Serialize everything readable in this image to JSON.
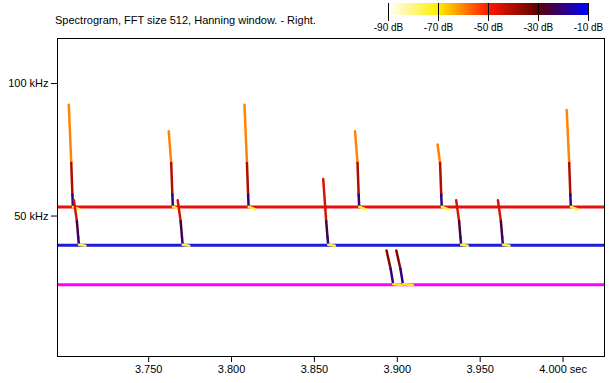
{
  "chart_data": {
    "type": "spectrogram",
    "title": "Spectrogram, FFT size 512, Hanning window. - Right.",
    "xlim": [
      3.695,
      4.025
    ],
    "xticks": [
      {
        "value": 3.75,
        "label": "3.750"
      },
      {
        "value": 3.8,
        "label": "3.800"
      },
      {
        "value": 3.85,
        "label": "3.850"
      },
      {
        "value": 3.9,
        "label": "3.900"
      },
      {
        "value": 3.95,
        "label": "3.950"
      },
      {
        "value": 4,
        "label": "4.000 sec"
      }
    ],
    "ylim": [
      -3,
      117
    ],
    "yticks": [
      {
        "value": 50,
        "label": "50 kHz"
      },
      {
        "value": 100,
        "label": "100 kHz"
      }
    ],
    "grid": false,
    "colorbar": {
      "range": [
        -90,
        -10
      ],
      "ticks": [
        {
          "value": -90,
          "label": "-90 dB"
        },
        {
          "value": -70,
          "label": "-70 dB"
        },
        {
          "value": -50,
          "label": "-50 dB"
        },
        {
          "value": -30,
          "label": "-30 dB"
        },
        {
          "value": -10,
          "label": "-10 dB"
        }
      ]
    },
    "calls": [
      {
        "time": [
          3.7018,
          3.7033,
          3.704,
          3.7043,
          3.7083
        ],
        "freq": [
          92,
          70,
          58,
          53.5,
          52.5
        ],
        "db": [
          -70,
          -60,
          -40,
          -20,
          -75
        ]
      },
      {
        "time": [
          3.7621,
          3.7636,
          3.7643,
          3.7646,
          3.7686
        ],
        "freq": [
          82,
          70,
          58,
          53.5,
          52.5
        ],
        "db": [
          -70,
          -60,
          -40,
          -20,
          -75
        ]
      },
      {
        "time": [
          3.8078,
          3.8093,
          3.81,
          3.8103,
          3.8143
        ],
        "freq": [
          92,
          70,
          58,
          53.5,
          52.5
        ],
        "db": [
          -70,
          -60,
          -40,
          -20,
          -75
        ]
      },
      {
        "time": [
          3.8745,
          3.876,
          3.8767,
          3.877,
          3.881
        ],
        "freq": [
          82,
          70,
          58,
          53.5,
          52.5
        ],
        "db": [
          -70,
          -60,
          -40,
          -20,
          -75
        ]
      },
      {
        "time": [
          3.9243,
          3.9258,
          3.9265,
          3.9268,
          3.9308
        ],
        "freq": [
          77,
          70,
          58,
          53.5,
          52.5
        ],
        "db": [
          -70,
          -60,
          -40,
          -20,
          -75
        ]
      },
      {
        "time": [
          4.0022,
          4.0037,
          4.0044,
          4.0047,
          4.0087
        ],
        "freq": [
          90,
          70,
          58,
          53.5,
          52.5
        ],
        "db": [
          -70,
          -60,
          -40,
          -20,
          -75
        ]
      },
      {
        "time": [
          3.7049,
          3.7067,
          3.7075,
          3.7079,
          3.7119
        ],
        "freq": [
          56,
          48,
          42,
          39.2,
          38.8
        ],
        "db": [
          -70,
          -45,
          -25,
          -20,
          -75
        ]
      },
      {
        "time": [
          3.7675,
          3.7693,
          3.7701,
          3.7705,
          3.7745
        ],
        "freq": [
          56,
          48,
          42,
          39.2,
          38.8
        ],
        "db": [
          -70,
          -45,
          -25,
          -20,
          -75
        ]
      },
      {
        "time": [
          3.8553,
          3.8571,
          3.8579,
          3.8583,
          3.8623
        ],
        "freq": [
          64,
          48,
          42,
          39.2,
          38.8
        ],
        "db": [
          -70,
          -45,
          -25,
          -20,
          -75
        ]
      },
      {
        "time": [
          3.9355,
          3.9373,
          3.9381,
          3.9385,
          3.9425
        ],
        "freq": [
          56,
          48,
          42,
          39.2,
          38.8
        ],
        "db": [
          -70,
          -45,
          -25,
          -20,
          -75
        ]
      },
      {
        "time": [
          3.9607,
          3.9625,
          3.9633,
          3.9637,
          3.9677
        ],
        "freq": [
          56,
          48,
          42,
          39.2,
          38.8
        ],
        "db": [
          -70,
          -45,
          -25,
          -20,
          -75
        ]
      },
      {
        "time": [
          3.8935,
          3.896,
          3.8975,
          3.9035
        ],
        "freq": [
          37,
          30,
          24.3,
          24
        ],
        "db": [
          -60,
          -35,
          -20,
          -70
        ]
      },
      {
        "time": [
          3.8994,
          3.9019,
          3.9034,
          3.9094
        ],
        "freq": [
          37,
          30,
          24.3,
          24
        ],
        "db": [
          -60,
          -35,
          -20,
          -70
        ]
      }
    ],
    "reference_lines": [
      {
        "value": 53.4,
        "color": "#e8100c"
      },
      {
        "value": 39,
        "color": "#1c1cd4"
      },
      {
        "value": 24.1,
        "color": "#ff00ff"
      }
    ]
  }
}
